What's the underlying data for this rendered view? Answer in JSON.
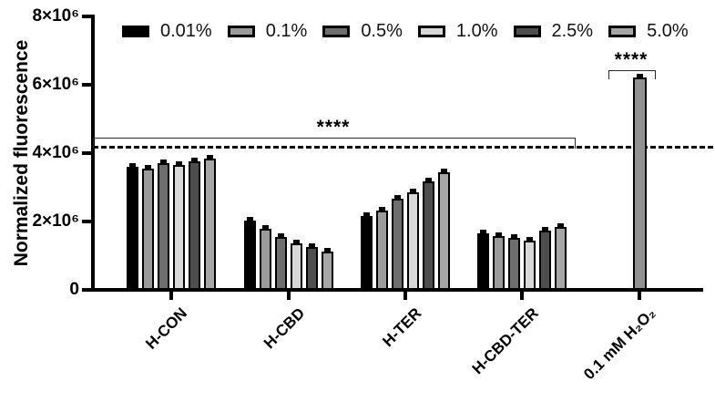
{
  "chart_data": {
    "type": "bar",
    "title": "",
    "ylabel": "Normalized fluorescence",
    "y_axis": {
      "ylim": [
        0,
        8000000
      ],
      "ticks": [
        {
          "label": "0",
          "value": 0
        },
        {
          "label": "2×10⁶",
          "value": 2000000
        },
        {
          "label": "4×10⁶",
          "value": 4000000
        },
        {
          "label": "6×10⁶",
          "value": 6000000
        },
        {
          "label": "8×10⁶",
          "value": 8000000
        }
      ],
      "grid": false
    },
    "legend_position": "top",
    "series": [
      {
        "label": "0.01%",
        "color": "#000000"
      },
      {
        "label": "0.1%",
        "color": "#9b9b9b"
      },
      {
        "label": "0.5%",
        "color": "#6e6e6e"
      },
      {
        "label": "1.0%",
        "color": "#d8d8d8"
      },
      {
        "label": "2.5%",
        "color": "#4e4e4e"
      },
      {
        "label": "5.0%",
        "color": "#a6a6a6"
      }
    ],
    "groups": [
      {
        "label": "H-CON",
        "values": [
          3600000,
          3550000,
          3700000,
          3650000,
          3760000,
          3850000
        ]
      },
      {
        "label": "H-CBD",
        "values": [
          2030000,
          1800000,
          1550000,
          1350000,
          1250000,
          1130000
        ]
      },
      {
        "label": "H-TER",
        "values": [
          2150000,
          2320000,
          2680000,
          2850000,
          3180000,
          3450000
        ]
      },
      {
        "label": "H-CBD-TER",
        "values": [
          1660000,
          1570000,
          1520000,
          1450000,
          1730000,
          1850000
        ]
      },
      {
        "label": "0.1 mM H₂O₂",
        "values": [
          6220000
        ],
        "single": true,
        "color": "#919191"
      }
    ],
    "has_error_bars": true,
    "annotations": {
      "dashed_line_value": 4150000,
      "brackets": [
        {
          "label": "****",
          "spans": "y-axis to H-CBD-TER",
          "y_value": 4430000
        },
        {
          "label": "****",
          "spans": "0.1 mM H₂O₂ bar",
          "y_value": 6900000
        }
      ]
    }
  }
}
